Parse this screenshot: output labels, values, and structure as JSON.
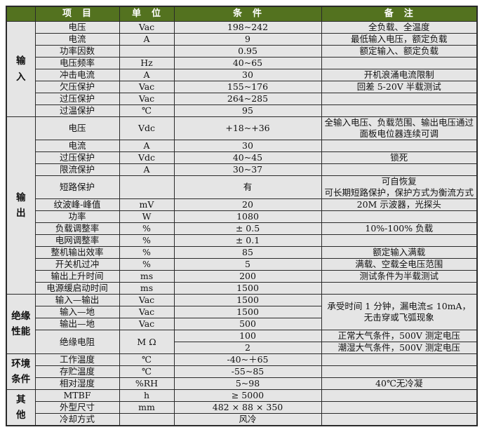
{
  "table": {
    "colors": {
      "header_bg": "#53721f",
      "header_text": "#ffffff",
      "cell_bg": "#e5e5e5",
      "border": "#2a2a2a"
    },
    "header": {
      "group": "",
      "item": "项　目",
      "unit": "单　位",
      "condition": "条　件",
      "remark": "备　注"
    },
    "sections": [
      {
        "label": "输\n入",
        "rows": [
          {
            "item": "电压",
            "unit": "Vac",
            "condition": "198~242",
            "remark": "全负载、全温度"
          },
          {
            "item": "电流",
            "unit": "A",
            "condition": "9",
            "remark": "最低输入电压，额定负载"
          },
          {
            "item": "功率因数",
            "unit": "",
            "condition": "0.95",
            "remark": "额定输入、额定负载"
          },
          {
            "item": "电压频率",
            "unit": "Hz",
            "condition": "40~65",
            "remark": ""
          },
          {
            "item": "冲击电流",
            "unit": "A",
            "condition": "30",
            "remark": "开机浪涌电流限制"
          },
          {
            "item": "欠压保护",
            "unit": "Vac",
            "condition": "155~176",
            "remark": "回差 5-20V 半载测试"
          },
          {
            "item": "过压保护",
            "unit": "Vac",
            "condition": "264~285",
            "remark": ""
          },
          {
            "item": "过温保护",
            "unit": "℃",
            "condition": "95",
            "remark": ""
          }
        ]
      },
      {
        "label": "输\n出",
        "rows": [
          {
            "item": "电压",
            "unit": "Vdc",
            "condition": "+18~+36",
            "remark": "全输入电压、负载范围、输出电压通过\n面板电位器连续可调"
          },
          {
            "item": "电流",
            "unit": "A",
            "condition": "30",
            "remark": ""
          },
          {
            "item": "过压保护",
            "unit": "Vdc",
            "condition": "40~45",
            "remark": "锁死"
          },
          {
            "item": "限流保护",
            "unit": "A",
            "condition": "30~37",
            "remark": ""
          },
          {
            "item": "短路保护",
            "unit": "",
            "condition": "有",
            "remark": "可自恢复\n可长期短路保护，保护方式为衡流方式"
          },
          {
            "item": "纹波峰-峰值",
            "unit": "mV",
            "condition": "20",
            "remark": "20M 示波器，光探头"
          },
          {
            "item": "功率",
            "unit": "W",
            "condition": "1080",
            "remark": ""
          },
          {
            "item": "负载调整率",
            "unit": "%",
            "condition": "± 0.5",
            "remark": "10%-100% 负载"
          },
          {
            "item": "电网调整率",
            "unit": "%",
            "condition": "± 0.1",
            "remark": ""
          },
          {
            "item": "整机输出效率",
            "unit": "%",
            "condition": "85",
            "remark": "额定输入满载"
          },
          {
            "item": "开关机过冲",
            "unit": "%",
            "condition": "5",
            "remark": "满载、空载全电压范围"
          },
          {
            "item": "输出上升时间",
            "unit": "ms",
            "condition": "200",
            "remark": "测试条件为半载测试"
          },
          {
            "item": "电源缓启动时间",
            "unit": "ms",
            "condition": "1500",
            "remark": ""
          }
        ]
      },
      {
        "label": "绝缘\n性能",
        "rows": [
          {
            "item": "输入—输出",
            "unit": "Vac",
            "condition": "1500",
            "remark": "承受时间 1 分钟，漏电流≤ 10mA，\n无击穿或飞弧现象",
            "remark_rowspan": 3
          },
          {
            "item": "输入—地",
            "unit": "Vac",
            "condition": "1500",
            "remark_skip": true
          },
          {
            "item": "输出—地",
            "unit": "Vac",
            "condition": "500",
            "remark_skip": true
          },
          {
            "item": "绝缘电阻",
            "item_rowspan": 2,
            "unit": "M Ω",
            "unit_rowspan": 2,
            "condition": "100",
            "remark": "正常大气条件，500V 测定电压"
          },
          {
            "item_skip": true,
            "unit_skip": true,
            "condition": "2",
            "remark": "潮湿大气条件，500V 测定电压"
          }
        ]
      },
      {
        "label": "环境\n条件",
        "rows": [
          {
            "item": "工作温度",
            "unit": "℃",
            "condition": "-40~＋65",
            "remark": ""
          },
          {
            "item": "存贮温度",
            "unit": "℃",
            "condition": "-55~85",
            "remark": ""
          },
          {
            "item": "相对湿度",
            "unit": "%RH",
            "condition": "5~98",
            "remark": "40℃无冷凝"
          }
        ]
      },
      {
        "label": "其\n他",
        "rows": [
          {
            "item": "MTBF",
            "unit": "h",
            "condition": "≥ 5000",
            "remark": ""
          },
          {
            "item": "外型尺寸",
            "unit": "mm",
            "condition": "482 × 88 × 350",
            "remark": ""
          },
          {
            "item": "冷却方式",
            "unit": "",
            "condition": "风冷",
            "remark": ""
          }
        ]
      }
    ]
  }
}
